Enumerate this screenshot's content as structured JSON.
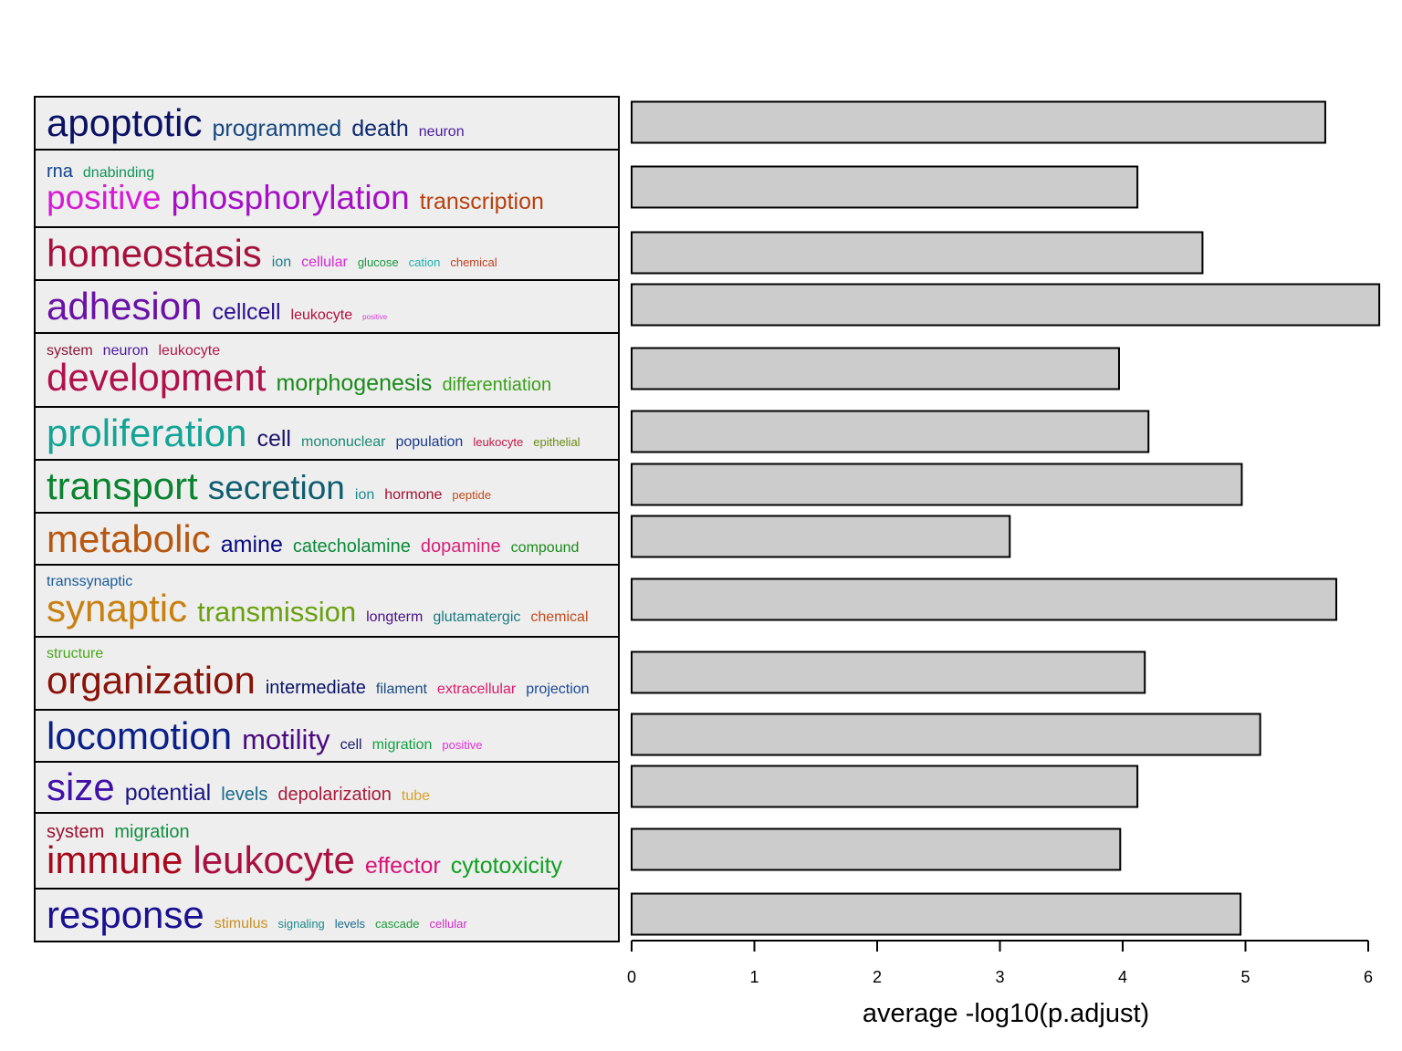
{
  "chart_data": {
    "type": "bar",
    "orientation": "horizontal",
    "xlabel": "average -log10(p.adjust)",
    "xlim": [
      0,
      6
    ],
    "x_ticks": [
      "0",
      "1",
      "2",
      "3",
      "4",
      "5",
      "6"
    ],
    "bar_color": "#cccccc",
    "grid": false,
    "values": [
      5.65,
      4.12,
      4.65,
      6.09,
      3.97,
      4.21,
      4.97,
      3.08,
      5.74,
      4.18,
      5.12,
      4.12,
      3.98,
      4.96
    ],
    "word_clouds": [
      {
        "lines": [
          [
            {
              "text": "apoptotic",
              "size": 6,
              "color": "#0b1264"
            },
            {
              "text": "programmed",
              "size": 3,
              "color": "#15477e"
            },
            {
              "text": "death",
              "size": 3,
              "color": "#0d2a6e"
            },
            {
              "text": "neuron",
              "size": 1,
              "color": "#4b1a9c"
            }
          ]
        ]
      },
      {
        "lines": [
          [
            {
              "text": "rna",
              "size": 2,
              "color": "#11428a"
            },
            {
              "text": "dnabinding",
              "size": 1,
              "color": "#10945a"
            }
          ],
          [
            {
              "text": "positive",
              "size": 5,
              "color": "#d61ad4"
            },
            {
              "text": "phosphorylation",
              "size": 5,
              "color": "#a510c4"
            },
            {
              "text": "transcription",
              "size": 3,
              "color": "#b8400e"
            }
          ]
        ]
      },
      {
        "lines": [
          [
            {
              "text": "homeostasis",
              "size": 6,
              "color": "#a8103c"
            },
            {
              "text": "ion",
              "size": 1,
              "color": "#1a7f86"
            },
            {
              "text": "cellular",
              "size": 1,
              "color": "#d628d2"
            },
            {
              "text": "glucose",
              "size": 0,
              "color": "#18963c"
            },
            {
              "text": "cation",
              "size": 0,
              "color": "#1ab2b0"
            },
            {
              "text": "chemical",
              "size": 0,
              "color": "#c04020"
            }
          ]
        ]
      },
      {
        "lines": [
          [
            {
              "text": "adhesion",
              "size": 6,
              "color": "#6a12a8"
            },
            {
              "text": "cellcell",
              "size": 3,
              "color": "#2a0e90"
            },
            {
              "text": "leukocyte",
              "size": 1,
              "color": "#b0123c"
            },
            {
              "text": "positive",
              "size": -1,
              "color": "#d640d4"
            }
          ]
        ]
      },
      {
        "lines": [
          [
            {
              "text": "system",
              "size": 1,
              "color": "#8a1438"
            },
            {
              "text": "neuron",
              "size": 1,
              "color": "#4a1aa0"
            },
            {
              "text": "leukocyte",
              "size": 1,
              "color": "#b0184a"
            }
          ],
          [
            {
              "text": "development",
              "size": 6,
              "color": "#b0104c"
            },
            {
              "text": "morphogenesis",
              "size": 3,
              "color": "#1a8a1a"
            },
            {
              "text": "differentiation",
              "size": 2,
              "color": "#3aa01a"
            }
          ]
        ]
      },
      {
        "lines": [
          [
            {
              "text": "proliferation",
              "size": 6,
              "color": "#14a496"
            },
            {
              "text": "cell",
              "size": 3,
              "color": "#1a1468"
            },
            {
              "text": "mononuclear",
              "size": 1,
              "color": "#1a8a72"
            },
            {
              "text": "population",
              "size": 1,
              "color": "#1a3a88"
            },
            {
              "text": "leukocyte",
              "size": 0,
              "color": "#c01848"
            },
            {
              "text": "epithelial",
              "size": 0,
              "color": "#6a8a10"
            }
          ]
        ]
      },
      {
        "lines": [
          [
            {
              "text": "transport",
              "size": 6,
              "color": "#0a8430"
            },
            {
              "text": "secretion",
              "size": 5,
              "color": "#0e5e70"
            },
            {
              "text": "ion",
              "size": 1,
              "color": "#1a8a92"
            },
            {
              "text": "hormone",
              "size": 1,
              "color": "#a01030"
            },
            {
              "text": "peptide",
              "size": 0,
              "color": "#c04a1a"
            }
          ]
        ]
      },
      {
        "lines": [
          [
            {
              "text": "metabolic",
              "size": 6,
              "color": "#b85810"
            },
            {
              "text": "amine",
              "size": 3,
              "color": "#0a0a80"
            },
            {
              "text": "catecholamine",
              "size": 2,
              "color": "#0a8a3a"
            },
            {
              "text": "dopamine",
              "size": 2,
              "color": "#d8207a"
            },
            {
              "text": "compound",
              "size": 1,
              "color": "#1a8a1a"
            }
          ]
        ]
      },
      {
        "lines": [
          [
            {
              "text": "transsynaptic",
              "size": 1,
              "color": "#1a5a98"
            }
          ],
          [
            {
              "text": "synaptic",
              "size": 6,
              "color": "#c88010"
            },
            {
              "text": "transmission",
              "size": 4,
              "color": "#6aa010"
            },
            {
              "text": "longterm",
              "size": 1,
              "color": "#4a108a"
            },
            {
              "text": "glutamatergic",
              "size": 1,
              "color": "#1a7a80"
            },
            {
              "text": "chemical",
              "size": 1,
              "color": "#c04a1a"
            }
          ]
        ]
      },
      {
        "lines": [
          [
            {
              "text": "structure",
              "size": 1,
              "color": "#4aa81a"
            }
          ],
          [
            {
              "text": "organization",
              "size": 6,
              "color": "#8a1208"
            },
            {
              "text": "intermediate",
              "size": 2,
              "color": "#0a1468"
            },
            {
              "text": "filament",
              "size": 1,
              "color": "#1a4a80"
            },
            {
              "text": "extracellular",
              "size": 1,
              "color": "#e01a6a"
            },
            {
              "text": "projection",
              "size": 1,
              "color": "#1a4a98"
            }
          ]
        ]
      },
      {
        "lines": [
          [
            {
              "text": "locomotion",
              "size": 6,
              "color": "#0a2088"
            },
            {
              "text": "motility",
              "size": 4,
              "color": "#4a0a80"
            },
            {
              "text": "cell",
              "size": 1,
              "color": "#1a1a6a"
            },
            {
              "text": "migration",
              "size": 1,
              "color": "#10a040"
            },
            {
              "text": "positive",
              "size": 0,
              "color": "#e030d8"
            }
          ]
        ]
      },
      {
        "lines": [
          [
            {
              "text": "size",
              "size": 6,
              "color": "#4010a8"
            },
            {
              "text": "potential",
              "size": 3,
              "color": "#1a1480"
            },
            {
              "text": "levels",
              "size": 2,
              "color": "#1a6a8a"
            },
            {
              "text": "depolarization",
              "size": 2,
              "color": "#a81a3a"
            },
            {
              "text": "tube",
              "size": 1,
              "color": "#d8a030"
            }
          ]
        ]
      },
      {
        "lines": [
          [
            {
              "text": "system",
              "size": 2,
              "color": "#9a1030"
            },
            {
              "text": "migration",
              "size": 2,
              "color": "#109040"
            }
          ],
          [
            {
              "text": "immune",
              "size": 6,
              "color": "#a8081c"
            },
            {
              "text": "leukocyte",
              "size": 6,
              "color": "#a81040"
            },
            {
              "text": "effector",
              "size": 3,
              "color": "#d81478"
            },
            {
              "text": "cytotoxicity",
              "size": 3,
              "color": "#10a020"
            }
          ]
        ]
      },
      {
        "lines": [
          [
            {
              "text": "response",
              "size": 6,
              "color": "#1a1090"
            },
            {
              "text": "stimulus",
              "size": 1,
              "color": "#c89020"
            },
            {
              "text": "signaling",
              "size": 0,
              "color": "#1a8a8a"
            },
            {
              "text": "levels",
              "size": 0,
              "color": "#1a6a8a"
            },
            {
              "text": "cascade",
              "size": 0,
              "color": "#1a9a3a"
            },
            {
              "text": "cellular",
              "size": 0,
              "color": "#d02ac8"
            }
          ]
        ]
      }
    ]
  }
}
